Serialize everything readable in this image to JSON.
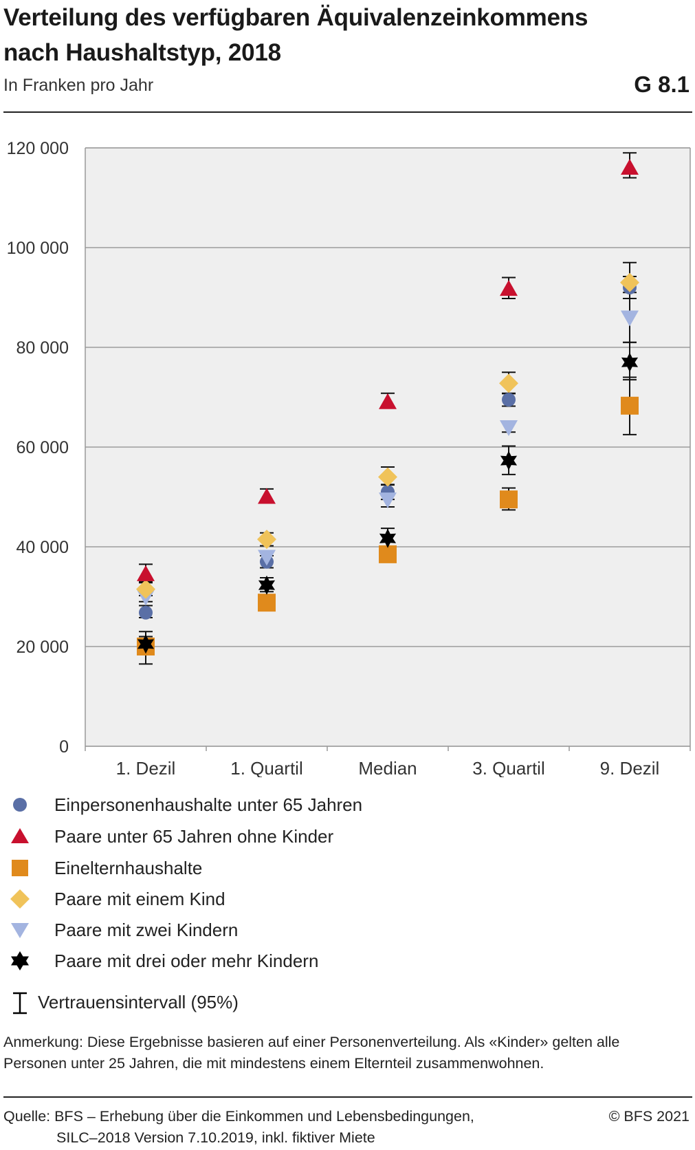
{
  "header": {
    "title_line1": "Verteilung des verfügbaren Äquivalenzeinkommens",
    "title_line2": "nach Haushaltstyp, 2018",
    "subtitle": "In Franken pro Jahr",
    "code": "G 8.1"
  },
  "chart_data": {
    "type": "scatter",
    "categories": [
      "1. Dezil",
      "1. Quartil",
      "Median",
      "3. Quartil",
      "9. Dezil"
    ],
    "y_ticks": [
      0,
      20000,
      40000,
      60000,
      80000,
      100000,
      120000
    ],
    "y_tick_labels": [
      "0",
      "20 000",
      "40 000",
      "60 000",
      "80 000",
      "100 000",
      "120 000"
    ],
    "ylim": [
      0,
      120000
    ],
    "grid": true,
    "background": "#efefef",
    "series": [
      {
        "name": "Einpersonenhaushalte unter 65 Jahren",
        "marker": "circle",
        "color": "#5a6fa6",
        "values": [
          26800,
          37000,
          51000,
          69500,
          92000
        ],
        "ci": [
          [
            25800,
            28200
          ],
          [
            35800,
            38200
          ],
          [
            49500,
            52500
          ],
          [
            68200,
            70700
          ],
          [
            89800,
            94200
          ]
        ]
      },
      {
        "name": "Paare unter 65 Jahren ohne Kinder",
        "marker": "triangle-up",
        "color": "#c8102e",
        "values": [
          34500,
          50000,
          69000,
          91700,
          116000
        ],
        "ci": [
          [
            33000,
            36500
          ],
          [
            48800,
            51600
          ],
          [
            67800,
            70800
          ],
          [
            89800,
            94000
          ],
          [
            114000,
            119000
          ]
        ]
      },
      {
        "name": "Eineltern­haushalte",
        "marker": "square",
        "color": "#e08a1c",
        "values": [
          20000,
          28800,
          38500,
          49500,
          68300
        ],
        "ci": [
          [
            16500,
            23000
          ],
          [
            27400,
            30000
          ],
          [
            37000,
            40000
          ],
          [
            47400,
            51800
          ],
          [
            62500,
            74000
          ]
        ]
      },
      {
        "name": "Paare mit einem Kind",
        "marker": "diamond",
        "color": "#f0c35a",
        "values": [
          31500,
          41500,
          54000,
          72800,
          93000
        ],
        "ci": [
          [
            30200,
            32800
          ],
          [
            40200,
            42800
          ],
          [
            52400,
            56000
          ],
          [
            70800,
            75000
          ],
          [
            89800,
            97000
          ]
        ]
      },
      {
        "name": "Paare mit zwei Kindern",
        "marker": "triangle-down",
        "color": "#a3b4e0",
        "values": [
          30000,
          38000,
          49500,
          64000,
          86000
        ],
        "ci": [
          [
            29000,
            31000
          ],
          [
            37000,
            39000
          ],
          [
            48000,
            51000
          ],
          [
            63000,
            65000
          ],
          [
            81000,
            91000
          ]
        ]
      },
      {
        "name": "Paare mit drei oder mehr Kindern",
        "marker": "star6",
        "color": "#000000",
        "values": [
          20500,
          32300,
          41700,
          57300,
          77000
        ],
        "ci": [
          [
            19500,
            22000
          ],
          [
            31000,
            33800
          ],
          [
            40000,
            43700
          ],
          [
            54500,
            60200
          ],
          [
            73500,
            81000
          ]
        ]
      }
    ]
  },
  "legend": {
    "items": [
      "Einpersonenhaushalte unter 65 Jahren",
      "Paare unter 65 Jahren ohne Kinder",
      "Einelternhaushalte",
      "Paare mit einem Kind",
      "Paare mit zwei Kindern",
      "Paare mit drei oder mehr Kindern"
    ],
    "ci_label": "Vertrauensintervall (95%)"
  },
  "footer": {
    "note_line1": "Anmerkung: Diese Ergebnisse basieren auf einer Personenverteilung. Als «Kinder» gelten alle",
    "note_line2": "Personen unter 25 Jahren, die mit mindestens einem Elternteil zusammenwohnen.",
    "source_line1": "Quelle: BFS – Erhebung über die Einkommen und Lebensbedingungen,",
    "source_line2": "SILC–2018 Version 7.10.2019, inkl. fiktiver Miete",
    "copyright": "© BFS 2021"
  }
}
